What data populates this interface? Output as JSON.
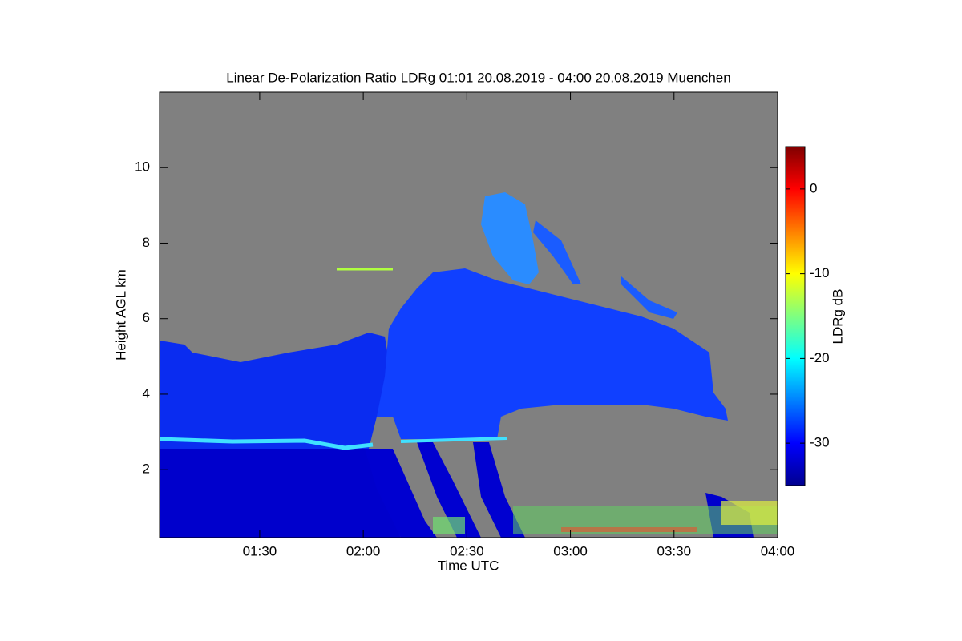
{
  "chart_data": {
    "type": "heatmap",
    "title": "Linear De-Polarization Ratio LDRg   01:01 20.08.2019 - 04:00 20.08.2019 Muenchen",
    "x_label": "Time UTC",
    "y_label": "Height AGL km",
    "xlim": [
      61,
      240
    ],
    "xticks": [
      {
        "value": 90,
        "label": "01:30"
      },
      {
        "value": 120,
        "label": "02:00"
      },
      {
        "value": 150,
        "label": "02:30"
      },
      {
        "value": 180,
        "label": "03:00"
      },
      {
        "value": 210,
        "label": "03:30"
      },
      {
        "value": 240,
        "label": "04:00"
      }
    ],
    "ylim": [
      0.2,
      12
    ],
    "yticks": [
      2,
      4,
      6,
      8,
      10
    ],
    "background": "#808080",
    "colorbar": {
      "label": "LDRg dB",
      "lim": [
        -35,
        5
      ],
      "ticks": [
        0,
        -10,
        -20,
        -30
      ],
      "colormap": "jet"
    }
  }
}
